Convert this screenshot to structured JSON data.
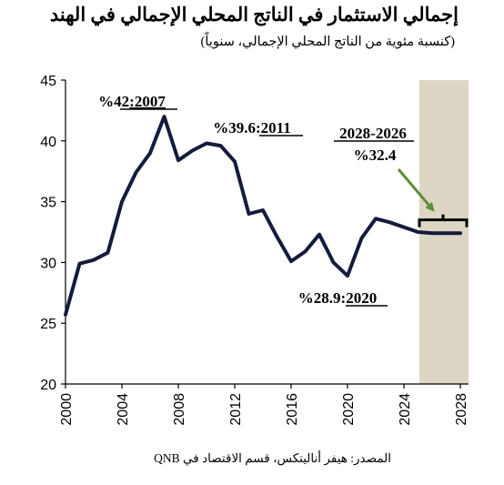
{
  "title": "إجمالي الاستثمار في الناتج المحلي الإجمالي في الهند",
  "subtitle": "(كنسبة مئوية من الناتج المحلي الإجمالي، سنوياً)",
  "source": "المصدر: هيفر أناليتكس، قسم الاقتصاد في QNB",
  "colors": {
    "line": "#141b3c",
    "forecast_band": "#ddd6c4",
    "arrow": "#5e8f33"
  },
  "chart_data": {
    "type": "line",
    "title": "إجمالي الاستثمار في الناتج المحلي الإجمالي في الهند",
    "x": [
      2000,
      2001,
      2002,
      2003,
      2004,
      2005,
      2006,
      2007,
      2008,
      2009,
      2010,
      2011,
      2012,
      2013,
      2014,
      2015,
      2016,
      2017,
      2018,
      2019,
      2020,
      2021,
      2022,
      2023,
      2024,
      2025,
      2026,
      2027,
      2028
    ],
    "values": [
      25.7,
      29.9,
      30.2,
      30.8,
      35.0,
      37.4,
      39.0,
      42.0,
      38.4,
      39.2,
      39.8,
      39.6,
      38.3,
      34.0,
      34.3,
      32.1,
      30.1,
      30.9,
      32.3,
      30.0,
      28.9,
      32.0,
      33.6,
      33.3,
      32.9,
      32.5,
      32.4,
      32.4,
      32.4
    ],
    "xlim": [
      2000,
      2028
    ],
    "ylim": [
      20,
      45
    ],
    "xticks": [
      2000,
      2004,
      2008,
      2012,
      2016,
      2020,
      2024,
      2028
    ],
    "yticks": [
      20,
      25,
      30,
      35,
      40,
      45
    ],
    "forecast_range": [
      2026,
      2028
    ],
    "grid": false,
    "annotations": {
      "peak": {
        "year": "2007",
        "value": "%42"
      },
      "y2011": {
        "year": "2011",
        "value": "%39.6"
      },
      "low": {
        "year": "2020",
        "value": "%28.9"
      },
      "forecast": {
        "period": "2028-2026",
        "value": "%32.4"
      }
    }
  }
}
